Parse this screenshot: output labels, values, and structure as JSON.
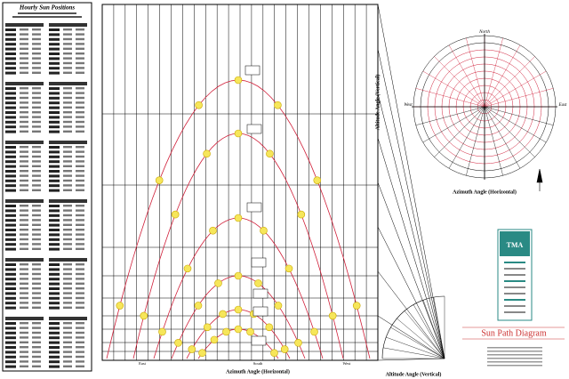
{
  "sidebar": {
    "title": "Hourly Sun Positions"
  },
  "diagram": {
    "title": "Sun Path Diagram",
    "x_axis_label": "Azimuth Angle (Horizontal)",
    "y_axis_label": "Altitude Angle (Vertical)",
    "bottom_labels": [
      "East",
      "South",
      "West"
    ]
  },
  "polar": {
    "label": "Azimuth Angle (Horizontal)",
    "north": "North",
    "west": "West",
    "east": "East"
  },
  "fan": {
    "label": "Altitude Angle (Vertical)"
  },
  "logo": {
    "text": "TMA"
  }
}
